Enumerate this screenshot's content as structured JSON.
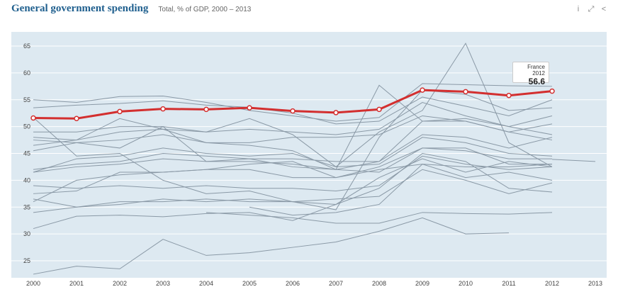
{
  "header": {
    "title": "General government spending",
    "subtitle": "Total, % of GDP, 2000 – 2013"
  },
  "tools": {
    "info": "info-icon",
    "expand": "expand-icon",
    "share": "share-icon"
  },
  "tooltip": {
    "label": "France 2012",
    "value": "56.6"
  },
  "colors": {
    "plot_bg": "#dde9f1",
    "highlight": "#d32f2f",
    "others": "#8a99a6"
  },
  "chart_data": {
    "type": "line",
    "title": "General government spending",
    "subtitle": "Total, % of GDP, 2000 – 2013",
    "x": [
      2000,
      2001,
      2002,
      2003,
      2004,
      2005,
      2006,
      2007,
      2008,
      2009,
      2010,
      2011,
      2012,
      2013
    ],
    "ylim": [
      22,
      67
    ],
    "yticks": [
      25,
      30,
      35,
      40,
      45,
      50,
      55,
      60,
      65
    ],
    "grid": true,
    "highlight": {
      "name": "France",
      "values": [
        51.6,
        51.5,
        52.8,
        53.3,
        53.2,
        53.5,
        52.9,
        52.6,
        53.2,
        56.8,
        56.5,
        55.8,
        56.6,
        null
      ]
    },
    "series": [
      [
        55.0,
        54.5,
        55.6,
        55.7,
        54.5,
        53.0,
        52.0,
        51.0,
        51.7,
        58.0,
        57.8,
        57.6,
        57.5,
        null
      ],
      [
        53.5,
        54.0,
        54.3,
        54.8,
        54.0,
        53.6,
        52.5,
        50.5,
        51.0,
        55.5,
        53.8,
        52.0,
        55.0,
        null
      ],
      [
        51.7,
        44.5,
        45.0,
        40.0,
        37.5,
        38.0,
        36.0,
        34.5,
        48.0,
        56.8,
        56.0,
        53.0,
        53.5,
        null
      ],
      [
        49.0,
        49.0,
        50.0,
        50.0,
        49.0,
        51.5,
        48.5,
        42.5,
        49.0,
        53.0,
        65.5,
        47.0,
        42.5,
        null
      ],
      [
        48.0,
        47.5,
        51.5,
        49.5,
        47.0,
        46.5,
        45.5,
        42.0,
        57.7,
        51.0,
        51.5,
        50.0,
        52.0,
        null
      ],
      [
        47.5,
        47.0,
        47.5,
        48.5,
        47.0,
        47.0,
        48.0,
        48.0,
        48.5,
        52.0,
        51.0,
        49.0,
        50.5,
        null
      ],
      [
        46.5,
        47.5,
        49.0,
        49.5,
        49.0,
        49.5,
        49.0,
        48.5,
        49.5,
        54.5,
        52.0,
        50.0,
        48.5,
        null
      ],
      [
        45.5,
        47.0,
        46.0,
        50.0,
        43.5,
        43.5,
        43.0,
        42.0,
        43.5,
        51.0,
        51.0,
        49.0,
        47.5,
        null
      ],
      [
        42.0,
        43.0,
        43.5,
        45.0,
        44.5,
        44.0,
        44.0,
        43.5,
        43.5,
        48.5,
        48.0,
        46.0,
        48.0,
        null
      ],
      [
        41.5,
        44.0,
        44.5,
        46.0,
        45.0,
        44.5,
        45.0,
        42.5,
        43.0,
        48.0,
        47.0,
        45.0,
        44.5,
        null
      ],
      [
        41.5,
        42.5,
        43.0,
        44.0,
        43.5,
        44.0,
        42.5,
        42.0,
        41.5,
        46.0,
        45.5,
        44.0,
        44.0,
        null
      ],
      [
        39.0,
        38.5,
        39.0,
        38.5,
        39.0,
        38.5,
        38.5,
        38.0,
        39.0,
        44.5,
        43.0,
        42.0,
        42.5,
        null
      ],
      [
        37.5,
        38.0,
        41.5,
        41.5,
        42.0,
        43.0,
        43.5,
        40.5,
        42.0,
        43.0,
        42.5,
        42.5,
        43.0,
        null
      ],
      [
        36.0,
        40.0,
        41.0,
        41.5,
        42.0,
        42.0,
        40.5,
        40.5,
        42.5,
        46.0,
        46.0,
        43.0,
        43.0,
        null
      ],
      [
        34.0,
        35.0,
        36.0,
        36.0,
        36.5,
        36.0,
        36.0,
        36.5,
        37.0,
        42.0,
        40.0,
        37.5,
        39.5,
        null
      ],
      [
        36.5,
        35.0,
        35.5,
        36.5,
        36.0,
        36.5,
        36.0,
        35.5,
        38.5,
        45.0,
        43.5,
        38.5,
        37.8,
        null
      ],
      [
        null,
        null,
        null,
        null,
        null,
        35.0,
        33.5,
        34.0,
        35.5,
        43.0,
        40.5,
        41.5,
        40.0,
        null
      ],
      [
        31.0,
        33.3,
        33.5,
        33.2,
        33.8,
        34.0,
        32.5,
        35.5,
        40.5,
        44.0,
        41.5,
        43.5,
        42.5,
        null
      ],
      [
        null,
        null,
        null,
        null,
        null,
        null,
        null,
        null,
        null,
        null,
        null,
        null,
        43.9,
        43.5
      ],
      [
        null,
        null,
        null,
        null,
        34.0,
        33.5,
        33.0,
        32.0,
        32.0,
        34.0,
        33.8,
        33.7,
        34.0,
        null
      ],
      [
        null,
        null,
        null,
        null,
        null,
        null,
        null,
        null,
        30.5,
        33.0,
        30.0,
        30.2,
        null,
        null
      ],
      [
        22.5,
        24.0,
        23.5,
        29.0,
        26.0,
        26.5,
        27.5,
        28.5,
        30.5,
        null,
        null,
        null,
        null,
        null
      ]
    ],
    "xlabel": "",
    "ylabel": ""
  }
}
